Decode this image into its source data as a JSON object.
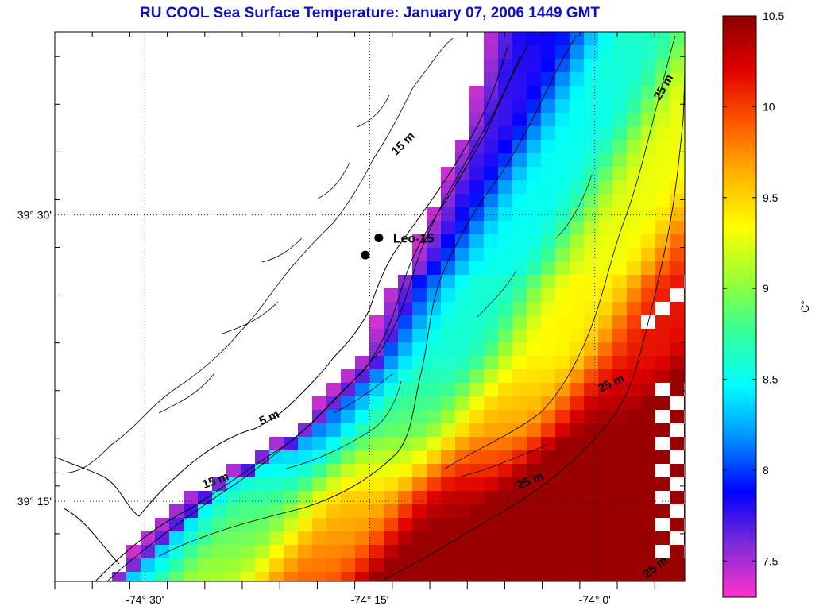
{
  "title": "RU COOL  Sea Surface Temperature:  January 07, 2006 1449 GMT",
  "map": {
    "lon_range": [
      -74.6,
      -73.9
    ],
    "lat_range": [
      39.18,
      39.66
    ],
    "lon_ticks": [
      {
        "value": -74.5,
        "label": "-74° 30'"
      },
      {
        "value": -74.25,
        "label": "-74° 15'"
      },
      {
        "value": -74.0,
        "label": "-74° 0'"
      }
    ],
    "lat_ticks": [
      {
        "value": 39.5,
        "label": "39° 30'"
      },
      {
        "value": 39.25,
        "label": "39° 15'"
      }
    ],
    "grid": true
  },
  "stations": [
    {
      "name": "Leo-15",
      "lon": -74.24,
      "lat": 39.48
    },
    {
      "name": "",
      "lon": -74.255,
      "lat": 39.465
    }
  ],
  "contour_labels": [
    {
      "text": "5 m",
      "lon": -74.36,
      "lat": 39.32,
      "angle": -25
    },
    {
      "text": "15 m",
      "lon": -74.21,
      "lat": 39.56,
      "angle": -45
    },
    {
      "text": "15 m",
      "lon": -74.42,
      "lat": 39.265,
      "angle": -20
    },
    {
      "text": "25 m",
      "lon": -74.07,
      "lat": 39.265,
      "angle": -22
    },
    {
      "text": "25 m",
      "lon": -73.98,
      "lat": 39.35,
      "angle": -25
    },
    {
      "text": "25 m",
      "lon": -73.92,
      "lat": 39.61,
      "angle": -60
    },
    {
      "text": "25 m",
      "lon": -73.93,
      "lat": 39.19,
      "angle": -40
    }
  ],
  "colorbar": {
    "min": 7.3,
    "max": 10.5,
    "ticks": [
      10.5,
      10,
      9.5,
      9,
      8.5,
      8,
      7.5
    ],
    "unit": "C°",
    "colors": [
      "#ff33cc",
      "#7f2bd6",
      "#0000ff",
      "#0090ff",
      "#00ffff",
      "#33ff99",
      "#99ff33",
      "#ffff00",
      "#ffb300",
      "#ff5500",
      "#e00000",
      "#8b0000"
    ]
  },
  "colors": {
    "title": "#1010c8",
    "land": "#ffffff",
    "no_data": "#ffffff"
  }
}
